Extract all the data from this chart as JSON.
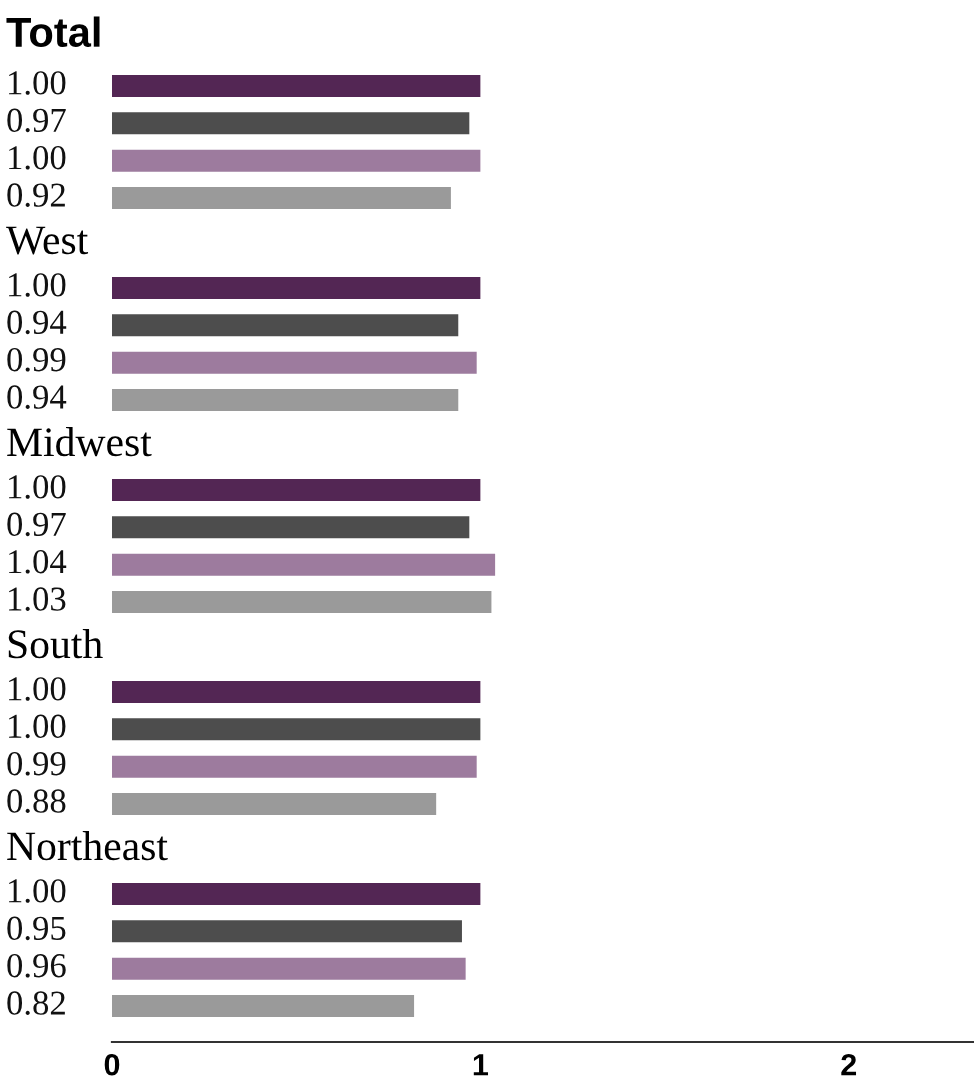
{
  "chart_data": {
    "type": "bar",
    "orientation": "horizontal",
    "categories": [
      "Total",
      "West",
      "Midwest",
      "South",
      "Northeast"
    ],
    "series": [
      {
        "color": "#532654",
        "values": [
          1.0,
          1.0,
          1.0,
          1.0,
          1.0
        ],
        "value_labels": [
          "1.00",
          "1.00",
          "1.00",
          "1.00",
          "1.00"
        ]
      },
      {
        "color": "#4d4d4d",
        "values": [
          0.97,
          0.94,
          0.97,
          1.0,
          0.95
        ],
        "value_labels": [
          "0.97",
          "0.94",
          "0.97",
          "1.00",
          "0.95"
        ]
      },
      {
        "color": "#9d7b9e",
        "values": [
          1.0,
          0.99,
          1.04,
          0.99,
          0.96
        ],
        "value_labels": [
          "1.00",
          "0.99",
          "1.04",
          "0.99",
          "0.96"
        ]
      },
      {
        "color": "#9a9a9a",
        "values": [
          0.92,
          0.94,
          1.03,
          0.88,
          0.82
        ],
        "value_labels": [
          "0.92",
          "0.94",
          "1.03",
          "0.88",
          "0.82"
        ]
      }
    ],
    "xlim": [
      0,
      2.34
    ],
    "xticks": [
      0,
      1,
      2
    ]
  }
}
